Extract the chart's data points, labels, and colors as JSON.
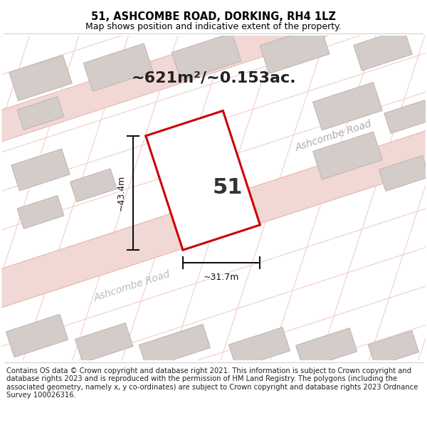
{
  "title": "51, ASHCOMBE ROAD, DORKING, RH4 1LZ",
  "subtitle": "Map shows position and indicative extent of the property.",
  "footer": "Contains OS data © Crown copyright and database right 2021. This information is subject to Crown copyright and database rights 2023 and is reproduced with the permission of HM Land Registry. The polygons (including the associated geometry, namely x, y co-ordinates) are subject to Crown copyright and database rights 2023 Ordnance Survey 100026316.",
  "area_label": "~621m²/~0.153ac.",
  "property_number": "51",
  "dim_width": "~31.7m",
  "dim_height": "~43.4m",
  "road_label_upper": "Ashcombe Road",
  "road_label_lower": "Ashcombe Road",
  "bg_color": "#ffffff",
  "map_bg": "#ffffff",
  "road_fill": "#f2d8d5",
  "road_line": "#e8b8b4",
  "grid_line": "#f0c8c4",
  "building_fill": "#d4ccc8",
  "building_edge": "#c0b8b4",
  "property_fill": "#ffffff",
  "property_edge": "#cc0000",
  "title_fontsize": 10.5,
  "subtitle_fontsize": 9,
  "footer_fontsize": 7.2,
  "area_fontsize": 16,
  "num_fontsize": 22,
  "dim_fontsize": 9,
  "road_fontsize": 10
}
